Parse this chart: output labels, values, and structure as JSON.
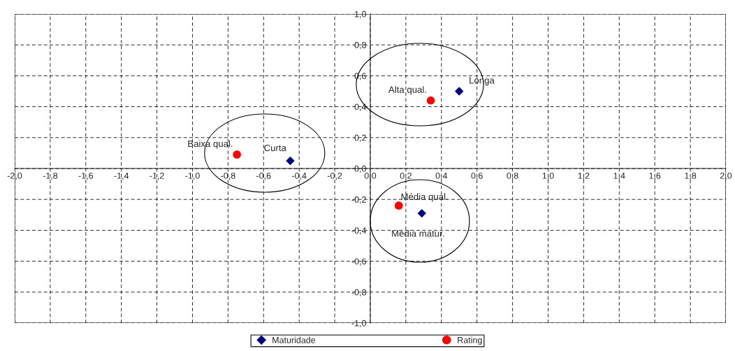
{
  "chart_data": {
    "type": "scatter",
    "series": [
      {
        "name": "Maturidade",
        "color": "#000080",
        "marker": "diamond",
        "x": [
          -0.45,
          0.5,
          0.29
        ],
        "values": [
          0.05,
          0.5,
          -0.29
        ]
      },
      {
        "name": "Rating",
        "color": "#ff0000",
        "marker": "circle",
        "x": [
          -0.75,
          0.34,
          0.16
        ],
        "values": [
          0.09,
          0.44,
          -0.24
        ]
      }
    ],
    "annotations": [
      {
        "text": "Curta",
        "x": -0.45,
        "y": 0.05
      },
      {
        "text": "Longa",
        "x": 0.5,
        "y": 0.5
      },
      {
        "text": "Média matur.",
        "x": 0.29,
        "y": -0.29
      },
      {
        "text": "Baixa qual.",
        "x": -0.75,
        "y": 0.09
      },
      {
        "text": "Alta qual.",
        "x": 0.34,
        "y": 0.44
      },
      {
        "text": "Média qual.",
        "x": 0.16,
        "y": -0.24
      }
    ],
    "xlim": [
      -2.0,
      2.0
    ],
    "ylim": [
      -1.0,
      1.0
    ],
    "xticks": [
      {
        "value": -2.0,
        "label": "-2,0"
      },
      {
        "value": -1.8,
        "label": "-1,8"
      },
      {
        "value": -1.6,
        "label": "-1,6"
      },
      {
        "value": -1.4,
        "label": "-1,4"
      },
      {
        "value": -1.2,
        "label": "-1,2"
      },
      {
        "value": -1.0,
        "label": "-1,0"
      },
      {
        "value": -0.8,
        "label": "-0,8"
      },
      {
        "value": -0.6,
        "label": "-0,6"
      },
      {
        "value": -0.4,
        "label": "-0,4"
      },
      {
        "value": -0.2,
        "label": "-0,2"
      },
      {
        "value": 0.0,
        "label": "0,0"
      },
      {
        "value": 0.2,
        "label": "0,2"
      },
      {
        "value": 0.4,
        "label": "0,4"
      },
      {
        "value": 0.6,
        "label": "0,6"
      },
      {
        "value": 0.8,
        "label": "0,8"
      },
      {
        "value": 1.0,
        "label": "1,0"
      },
      {
        "value": 1.2,
        "label": "1,2"
      },
      {
        "value": 1.4,
        "label": "1,4"
      },
      {
        "value": 1.6,
        "label": "1,6"
      },
      {
        "value": 1.8,
        "label": "1,8"
      },
      {
        "value": 2.0,
        "label": "2,0"
      }
    ],
    "yticks": [
      {
        "value": -1.0,
        "label": "-1,0"
      },
      {
        "value": -0.8,
        "label": "-0,8"
      },
      {
        "value": -0.6,
        "label": "-0,6"
      },
      {
        "value": -0.4,
        "label": "-0,4"
      },
      {
        "value": -0.2,
        "label": "-0,2"
      },
      {
        "value": 0.0,
        "label": "0,0"
      },
      {
        "value": 0.2,
        "label": "0,2"
      },
      {
        "value": 0.4,
        "label": "0,4"
      },
      {
        "value": 0.6,
        "label": "0,6"
      },
      {
        "value": 0.8,
        "label": "0,8"
      },
      {
        "value": 1.0,
        "label": "1,0"
      }
    ],
    "grid": true,
    "legend": "bottom"
  }
}
